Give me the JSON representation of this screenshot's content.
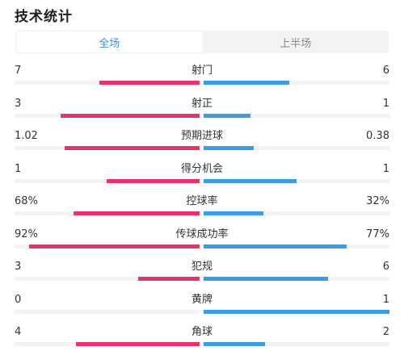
{
  "title": "技术统计",
  "tabs": [
    {
      "label": "全场",
      "active": true
    },
    {
      "label": "上半场",
      "active": false
    }
  ],
  "colors": {
    "home_bar": "#e6336b",
    "away_bar": "#3a9be6",
    "active_tab_text": "#3a8fe0"
  },
  "stats": [
    {
      "label": "射门",
      "home": "7",
      "away": "6",
      "home_share": 0.54,
      "away_share": 0.46
    },
    {
      "label": "射正",
      "home": "3",
      "away": "1",
      "home_share": 0.75,
      "away_share": 0.25
    },
    {
      "label": "预期进球",
      "home": "1.02",
      "away": "0.38",
      "home_share": 0.73,
      "away_share": 0.27
    },
    {
      "label": "得分机会",
      "home": "1",
      "away": "1",
      "home_share": 0.5,
      "away_share": 0.5
    },
    {
      "label": "控球率",
      "home": "68%",
      "away": "32%",
      "home_share": 0.68,
      "away_share": 0.32
    },
    {
      "label": "传球成功率",
      "home": "92%",
      "away": "77%",
      "home_share": 0.92,
      "away_share": 0.77
    },
    {
      "label": "犯规",
      "home": "3",
      "away": "6",
      "home_share": 0.33,
      "away_share": 0.67
    },
    {
      "label": "黄牌",
      "home": "0",
      "away": "1",
      "home_share": 0.0,
      "away_share": 1.0
    },
    {
      "label": "角球",
      "home": "4",
      "away": "2",
      "home_share": 0.67,
      "away_share": 0.33
    }
  ]
}
